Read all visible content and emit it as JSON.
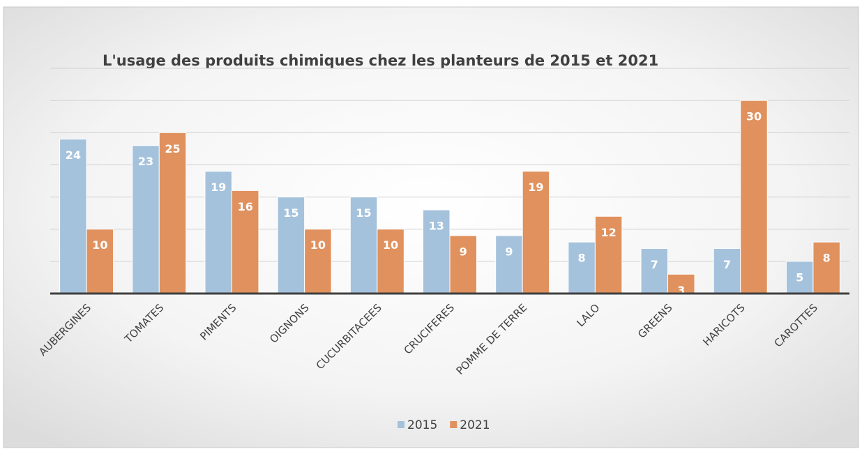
{
  "chart_data": {
    "type": "bar",
    "title": "L'usage des produits chimiques chez les planteurs de 2015 et 2021",
    "categories": [
      "AUBERGINES",
      "TOMATES",
      "PIMENTS",
      "OIGNONS",
      "CUCURBITACEES",
      "CRUCIFERES",
      "POMME DE TERRE",
      "LALO",
      "GREENS",
      "HARICOTS",
      "CAROTTES"
    ],
    "series": [
      {
        "name": "2015",
        "color": "#a5c2dc",
        "values": [
          24,
          23,
          19,
          15,
          15,
          13,
          9,
          8,
          7,
          7,
          5
        ]
      },
      {
        "name": "2021",
        "color": "#e0915d",
        "values": [
          10,
          25,
          16,
          10,
          10,
          9,
          19,
          12,
          3,
          30,
          8
        ]
      }
    ],
    "ylim": [
      0,
      35
    ],
    "yticks": [
      0,
      5,
      10,
      15,
      20,
      25,
      30,
      35
    ],
    "grid": true,
    "legend": "bottom"
  }
}
